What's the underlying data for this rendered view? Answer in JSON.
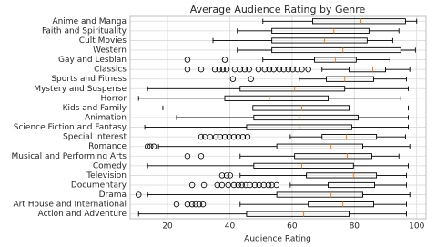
{
  "chart_data": {
    "type": "boxplot",
    "orientation": "horizontal",
    "title": "Average Audience Rating by Genre",
    "x_label": "Audience Rating",
    "xlim": [
      8,
      103
    ],
    "xticks": [
      20,
      40,
      60,
      80,
      100
    ],
    "grid": true,
    "box_color": "#000000",
    "median_color": "#ff7f0e",
    "categories": [
      "Anime and Manga",
      "Faith and Spirituality",
      "Cult Movies",
      "Western",
      "Gay and Lesbian",
      "Classics",
      "Sports and Fitness",
      "Mystery and Suspense",
      "Horror",
      "Kids and Family",
      "Animation",
      "Science Fiction and Fantasy",
      "Special Interest",
      "Romance",
      "Musical and Performing Arts",
      "Comedy",
      "Television",
      "Documentary",
      "Drama",
      "Art House and International",
      "Action and Adventure"
    ],
    "boxes": [
      {
        "whislo": 50.6,
        "q1": 66.6,
        "med": 82.1,
        "q3": 96.4,
        "whishi": 100,
        "fliers": []
      },
      {
        "whislo": 42.4,
        "q1": 53.5,
        "med": 73.4,
        "q3": 84.7,
        "whishi": 94.3,
        "fliers": []
      },
      {
        "whislo": 34.6,
        "q1": 53.5,
        "med": 70.4,
        "q3": 84.1,
        "whishi": 92.3,
        "fliers": []
      },
      {
        "whislo": 42.4,
        "q1": 53.5,
        "med": 76.3,
        "q3": 94.9,
        "whishi": 99.6,
        "fliers": []
      },
      {
        "whislo": 50.6,
        "q1": 67.2,
        "med": 73.9,
        "q3": 80.6,
        "whishi": 91.4,
        "fliers": [
          26.4,
          38.4
        ]
      },
      {
        "whislo": 69.6,
        "q1": 78.3,
        "med": 85.9,
        "q3": 90,
        "whishi": 97.8,
        "fliers": [
          26.4,
          30.8,
          35.2,
          36.6,
          37.8,
          39,
          41.6,
          43.3,
          44.8,
          46.2,
          49.2,
          51.2,
          52.7,
          54.1,
          55.9,
          57.3,
          58.8,
          60.2,
          61.7,
          63.1,
          65.2
        ]
      },
      {
        "whislo": 62.3,
        "q1": 71,
        "med": 76.9,
        "q3": 86.2,
        "whishi": 96.7,
        "fliers": [
          41,
          46.8
        ]
      },
      {
        "whislo": 13.6,
        "q1": 43.3,
        "med": 60.8,
        "q3": 76.9,
        "whishi": 97.3,
        "fliers": []
      },
      {
        "whislo": 10.7,
        "q1": 38.4,
        "med": 52.7,
        "q3": 71.6,
        "whishi": 94.9,
        "fliers": []
      },
      {
        "whislo": 18.5,
        "q1": 47.4,
        "med": 63.1,
        "q3": 78.3,
        "whishi": 97.3,
        "fliers": []
      },
      {
        "whislo": 22.9,
        "q1": 47.7,
        "med": 62.3,
        "q3": 81.2,
        "whishi": 97.3,
        "fliers": []
      },
      {
        "whislo": 12.7,
        "q1": 45.4,
        "med": 62.3,
        "q3": 79.2,
        "whishi": 97.3,
        "fliers": []
      },
      {
        "whislo": 59.4,
        "q1": 69.6,
        "med": 77.4,
        "q3": 87.1,
        "whishi": 96.4,
        "fliers": [
          30.8,
          32,
          33.7,
          35.5,
          36.9,
          38.4,
          39.8,
          41.3,
          42.7,
          44.2,
          45.7
        ]
      },
      {
        "whislo": 17.1,
        "q1": 55.1,
        "med": 72.5,
        "q3": 82.7,
        "whishi": 97.8,
        "fliers": [
          13.6,
          14.5,
          15.6
        ]
      },
      {
        "whislo": 43.3,
        "q1": 60.8,
        "med": 77.7,
        "q3": 85.6,
        "whishi": 94.3,
        "fliers": [
          26.4,
          30.8
        ]
      },
      {
        "whislo": 13.6,
        "q1": 47.7,
        "med": 63.1,
        "q3": 79.7,
        "whishi": 97.3,
        "fliers": []
      },
      {
        "whislo": 43.3,
        "q1": 64.6,
        "med": 79.7,
        "q3": 87.1,
        "whishi": 96.7,
        "fliers": [
          37.5,
          39,
          40.1
        ]
      },
      {
        "whislo": 59.4,
        "q1": 71.6,
        "med": 78.6,
        "q3": 86.5,
        "whishi": 96.7,
        "fliers": [
          27.9,
          31.7,
          36,
          37.5,
          39.5,
          41.3,
          42.7,
          43.9,
          45.1,
          46.5,
          48,
          49.4,
          50.9,
          52.4,
          53.5,
          55
        ]
      },
      {
        "whislo": 13.6,
        "q1": 55.1,
        "med": 72.5,
        "q3": 82.7,
        "whishi": 97.8,
        "fliers": [
          10.7
        ]
      },
      {
        "whislo": 43.3,
        "q1": 65.2,
        "med": 76.3,
        "q3": 86.2,
        "whishi": 96.7,
        "fliers": [
          22.9,
          26.4,
          27.9,
          29,
          30.2,
          31.4
        ]
      },
      {
        "whislo": 10.7,
        "q1": 45.4,
        "med": 63.7,
        "q3": 78.3,
        "whishi": 96.7,
        "fliers": []
      }
    ]
  }
}
